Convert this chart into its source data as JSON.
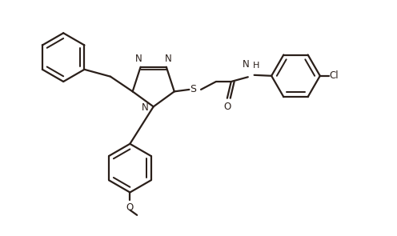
{
  "bg_color": "#ffffff",
  "line_color": "#2a1f1a",
  "line_width": 1.6,
  "figsize": [
    4.96,
    2.95
  ],
  "dpi": 100,
  "xlim": [
    0,
    10
  ],
  "ylim": [
    0,
    6
  ]
}
